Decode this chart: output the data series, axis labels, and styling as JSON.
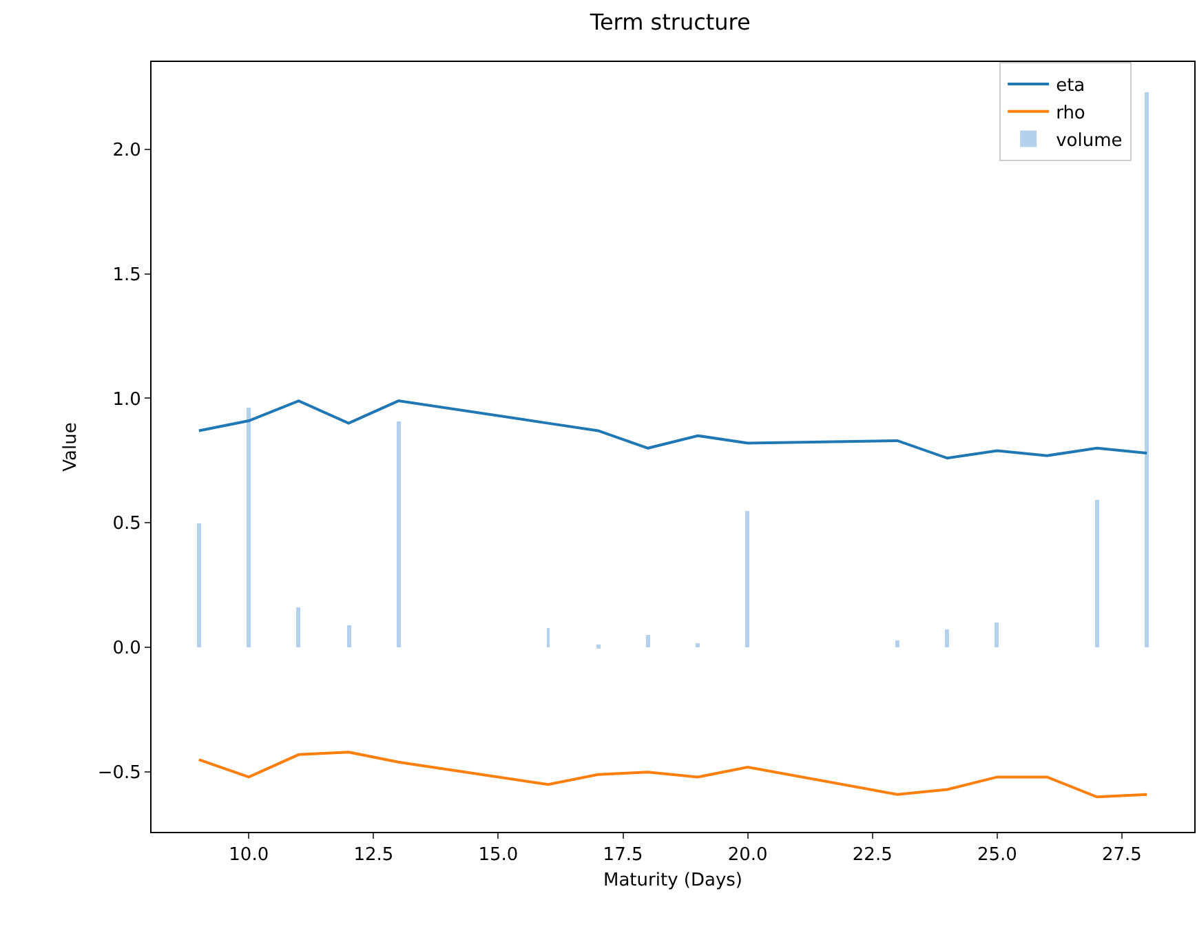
{
  "chart_data": {
    "type": "line",
    "title": "Term structure",
    "xlabel": "Maturity (Days)",
    "ylabel": "Value",
    "x": [
      9,
      10,
      11,
      12,
      13,
      16,
      17,
      18,
      19,
      20,
      23,
      24,
      25,
      26,
      27,
      28
    ],
    "series": [
      {
        "name": "eta",
        "color": "#1f77b4",
        "values": [
          0.87,
          0.91,
          0.99,
          0.9,
          0.99,
          0.9,
          0.87,
          0.8,
          0.85,
          0.82,
          0.83,
          0.76,
          0.79,
          0.77,
          0.8,
          0.78
        ]
      },
      {
        "name": "rho",
        "color": "#ff7f0e",
        "values": [
          -0.45,
          -0.52,
          -0.43,
          -0.42,
          -0.46,
          -0.55,
          -0.51,
          -0.5,
          -0.52,
          -0.48,
          -0.59,
          -0.57,
          -0.52,
          -0.52,
          -0.6,
          -0.59
        ]
      },
      {
        "name": "volume",
        "type": "bar",
        "color": "#b3d1ea",
        "values": [
          0.5,
          0.96,
          0.16,
          0.09,
          0.91,
          0.08,
          0.01,
          0.05,
          0.02,
          0.55,
          0.03,
          0.07,
          0.1,
          null,
          0.59,
          2.23
        ]
      }
    ],
    "xlim": [
      8.05,
      28.95
    ],
    "xticks": [
      {
        "value": 10,
        "label": "10.0"
      },
      {
        "value": 12.5,
        "label": "12.5"
      },
      {
        "value": 15,
        "label": "15.0"
      },
      {
        "value": 17.5,
        "label": "17.5"
      },
      {
        "value": 20,
        "label": "20.0"
      },
      {
        "value": 22.5,
        "label": "22.5"
      },
      {
        "value": 25,
        "label": "25.0"
      },
      {
        "value": 27.5,
        "label": "27.5"
      }
    ],
    "ylim": [
      -0.74,
      2.35
    ],
    "yticks": [
      {
        "value": -0.5,
        "label": "−0.5"
      },
      {
        "value": 0,
        "label": "0.0"
      },
      {
        "value": 0.5,
        "label": "0.5"
      },
      {
        "value": 1,
        "label": "1.0"
      },
      {
        "value": 1.5,
        "label": "1.5"
      },
      {
        "value": 2,
        "label": "2.0"
      }
    ],
    "legend": "top right",
    "grid": false,
    "marker": "none",
    "line_style": "solid"
  }
}
